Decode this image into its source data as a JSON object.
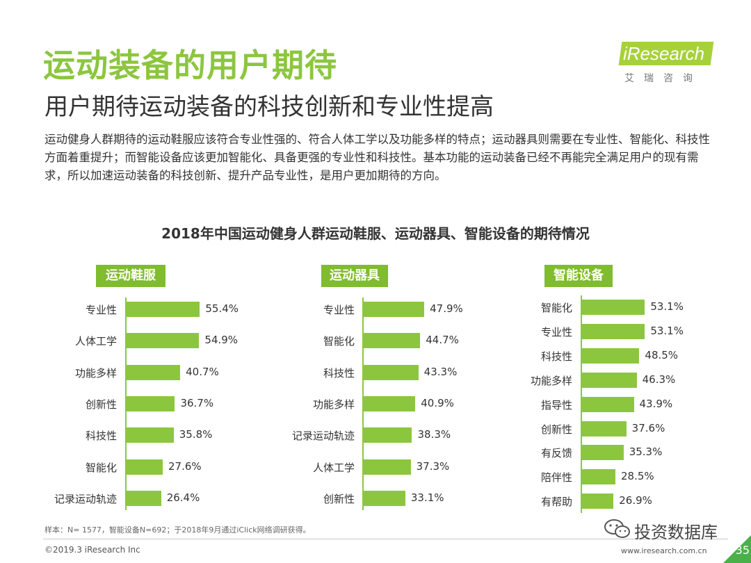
{
  "header": {
    "title": "运动装备的用户期待",
    "subtitle": "用户期待运动装备的科技创新和专业性提高"
  },
  "logo": {
    "brand": "iResearch",
    "chinese": "艾瑞咨询"
  },
  "paragraph": "运动健身人群期待的运动鞋服应该符合专业性强的、符合人体工学以及功能多样的特点；运动器具则需要在专业性、智能化、科技性方面着重提升；而智能设备应该更加智能化、具备更强的专业性和科技性。基本功能的运动装备已经不再能完全满足用户的现有需求，所以加速运动装备的科技创新、提升产品专业性，是用户更加期待的方向。",
  "chart_title": "2018年中国运动健身人群运动鞋服、运动器具、智能设备的期待情况",
  "chart_data": [
    {
      "type": "bar",
      "orientation": "horizontal",
      "title": "运动鞋服",
      "unit": "%",
      "categories": [
        "专业性",
        "人体工学",
        "功能多样",
        "创新性",
        "科技性",
        "智能化",
        "记录运动轨迹"
      ],
      "values": [
        55.4,
        54.9,
        40.7,
        36.7,
        35.8,
        27.6,
        26.4
      ],
      "value_labels": [
        "55.4%",
        "54.9%",
        "40.7%",
        "36.7%",
        "35.8%",
        "27.6%",
        "26.4%"
      ]
    },
    {
      "type": "bar",
      "orientation": "horizontal",
      "title": "运动器具",
      "unit": "%",
      "categories": [
        "专业性",
        "智能化",
        "科技性",
        "功能多样",
        "记录运动轨迹",
        "人体工学",
        "创新性"
      ],
      "values": [
        47.9,
        44.7,
        43.3,
        40.9,
        38.3,
        37.3,
        33.1
      ],
      "value_labels": [
        "47.9%",
        "44.7%",
        "43.3%",
        "40.9%",
        "38.3%",
        "37.3%",
        "33.1%"
      ]
    },
    {
      "type": "bar",
      "orientation": "horizontal",
      "title": "智能设备",
      "unit": "%",
      "categories": [
        "智能化",
        "专业性",
        "科技性",
        "功能多样",
        "指导性",
        "创新性",
        "有反馈",
        "陪伴性",
        "有帮助"
      ],
      "values": [
        53.1,
        53.1,
        48.5,
        46.3,
        43.9,
        37.6,
        35.3,
        28.5,
        26.9
      ],
      "value_labels": [
        "53.1%",
        "53.1%",
        "48.5%",
        "46.3%",
        "43.9%",
        "37.6%",
        "35.3%",
        "28.5%",
        "26.9%"
      ]
    }
  ],
  "colors": {
    "accent": "#8cc63f",
    "header_bg": "#7fbc2e",
    "text": "#333333"
  },
  "footer": {
    "note": "样本：N= 1577，智能设备N=692；于2018年9月通过iClick网络调研获得。",
    "copyright": "©2019.3  iResearch Inc",
    "url": "www.iresearch.com.cn",
    "page": "35",
    "wechat": "投资数据库"
  }
}
